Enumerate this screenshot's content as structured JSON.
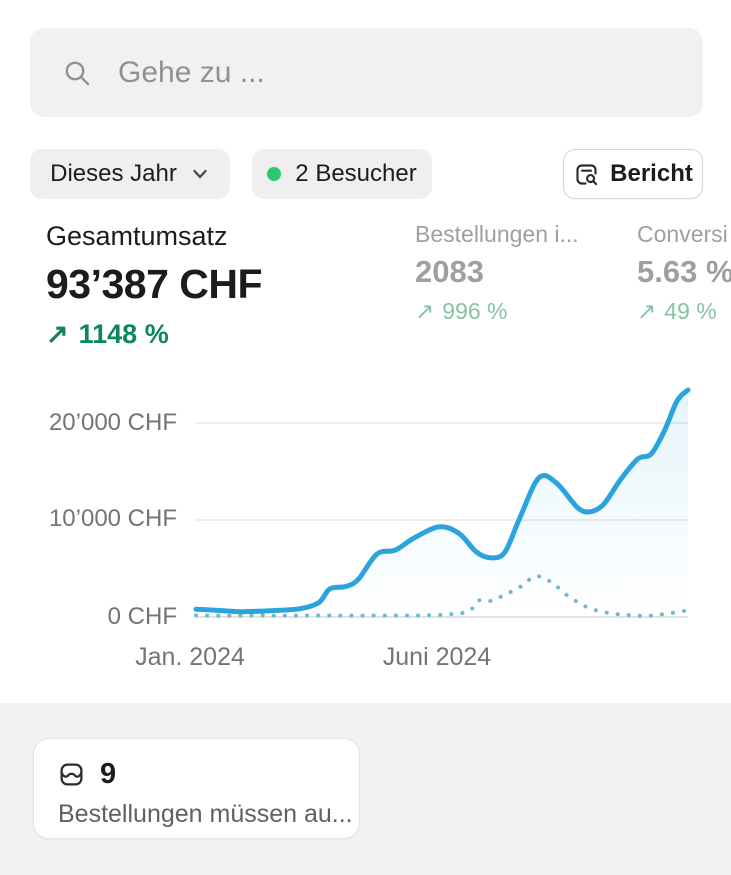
{
  "search": {
    "placeholder": "Gehe zu ..."
  },
  "controls": {
    "date_range_label": "Dieses Jahr",
    "visitors_label": "2 Besucher",
    "report_label": "Bericht"
  },
  "metrics": [
    {
      "label": "Gesamtumsatz",
      "value": "93’387 CHF",
      "delta_arrow": "↗",
      "delta": "1148 %",
      "active": true
    },
    {
      "label": "Bestellungen i...",
      "value": "2083",
      "delta_arrow": "↗",
      "delta": "996 %",
      "active": false
    },
    {
      "label": "Conversi",
      "value": "5.63 %",
      "delta_arrow": "↗",
      "delta": "49 %",
      "active": false
    }
  ],
  "chart_data": {
    "type": "line",
    "title": "Gesamtumsatz",
    "currency": "CHF",
    "grid": true,
    "legend": "none",
    "ylim": [
      0,
      24000
    ],
    "y_ticks": [
      {
        "value": 0,
        "label": "0 CHF"
      },
      {
        "value": 10000,
        "label": "10’000 CHF"
      },
      {
        "value": 20000,
        "label": "20’000 CHF"
      }
    ],
    "x_ticks": [
      "Jan. 2024",
      "Juni 2024"
    ],
    "series": [
      {
        "name": "current-period",
        "style": "solid",
        "color": "#2AA4DC",
        "points": [
          [
            0.0,
            800
          ],
          [
            0.04,
            700
          ],
          [
            0.09,
            550
          ],
          [
            0.15,
            650
          ],
          [
            0.21,
            850
          ],
          [
            0.25,
            1500
          ],
          [
            0.272,
            2900
          ],
          [
            0.305,
            3150
          ],
          [
            0.33,
            3900
          ],
          [
            0.368,
            6500
          ],
          [
            0.405,
            6900
          ],
          [
            0.445,
            8200
          ],
          [
            0.495,
            9300
          ],
          [
            0.535,
            8600
          ],
          [
            0.57,
            6700
          ],
          [
            0.6,
            6100
          ],
          [
            0.628,
            6700
          ],
          [
            0.658,
            10200
          ],
          [
            0.697,
            14350
          ],
          [
            0.733,
            13800
          ],
          [
            0.775,
            11300
          ],
          [
            0.8,
            10850
          ],
          [
            0.828,
            11600
          ],
          [
            0.862,
            14100
          ],
          [
            0.898,
            16300
          ],
          [
            0.925,
            16800
          ],
          [
            0.952,
            19200
          ],
          [
            0.978,
            22300
          ],
          [
            1.0,
            23400
          ]
        ]
      },
      {
        "name": "previous-period",
        "style": "dotted",
        "color": "#6FB9D2",
        "points": [
          [
            0.0,
            150
          ],
          [
            0.06,
            130
          ],
          [
            0.12,
            150
          ],
          [
            0.18,
            140
          ],
          [
            0.24,
            150
          ],
          [
            0.3,
            140
          ],
          [
            0.36,
            150
          ],
          [
            0.42,
            150
          ],
          [
            0.47,
            180
          ],
          [
            0.52,
            300
          ],
          [
            0.555,
            600
          ],
          [
            0.575,
            1700
          ],
          [
            0.598,
            1650
          ],
          [
            0.63,
            2350
          ],
          [
            0.662,
            3200
          ],
          [
            0.69,
            4200
          ],
          [
            0.722,
            3600
          ],
          [
            0.758,
            2100
          ],
          [
            0.798,
            950
          ],
          [
            0.838,
            420
          ],
          [
            0.878,
            200
          ],
          [
            0.918,
            120
          ],
          [
            0.958,
            350
          ],
          [
            1.0,
            700
          ]
        ]
      }
    ]
  },
  "bottom_card": {
    "count": "9",
    "label": "Bestellungen müssen au..."
  },
  "colors": {
    "positive": "#0C875A",
    "positive_muted": "#86C3A6",
    "live_dot": "#2BC870",
    "accent_blue": "#2AA4DC",
    "section_bg": "#F2F2F2"
  }
}
